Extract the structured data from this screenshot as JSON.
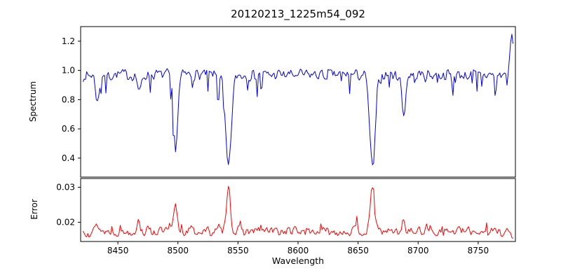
{
  "figure": {
    "title": "20120213_1225m54_092",
    "xlabel": "Wavelength",
    "ylabel_top": "Spectrum",
    "ylabel_bottom": "Error",
    "background": "#ffffff"
  },
  "chart_data": {
    "type": "line",
    "title": "20120213_1225m54_092",
    "xlabel": "Wavelength",
    "grid": false,
    "legend": null,
    "xlim": [
      8419,
      8781
    ],
    "xticks": [
      8450,
      8500,
      8550,
      8600,
      8650,
      8700,
      8750
    ],
    "xtick_labels": [
      "8450",
      "8500",
      "8550",
      "8600",
      "8650",
      "8700",
      "8750"
    ],
    "panels": [
      {
        "ylabel": "Spectrum",
        "ylim": [
          0.27,
          1.3
        ],
        "yticks": [
          0.4,
          0.6,
          0.8,
          1.0,
          1.2
        ],
        "ytick_labels": [
          "0.4",
          "0.6",
          "0.8",
          "1.0",
          "1.2"
        ],
        "series": {
          "name": "spectrum",
          "color": "#0000ee",
          "x_start": 8421,
          "x_end": 8779,
          "x_step": 1,
          "baseline": 0.97,
          "noise_amp": 0.1,
          "dip_prob": 0.1,
          "dip_max": 0.16,
          "spike_prob": 0,
          "spike_max": 0,
          "seed": 7,
          "absorption_lines": [
            {
              "center": 8433,
              "depth": 0.19,
              "width": 2.0
            },
            {
              "center": 8468,
              "depth": 0.13,
              "width": 2.0
            },
            {
              "center": 8498,
              "depth": 0.5,
              "width": 2.6
            },
            {
              "center": 8542,
              "depth": 0.64,
              "width": 3.4
            },
            {
              "center": 8662,
              "depth": 0.64,
              "width": 3.2
            },
            {
              "center": 8688,
              "depth": 0.27,
              "width": 2.2
            }
          ],
          "emission_spike": {
            "center": 8778,
            "amp": 0.27,
            "width": 1.8
          }
        }
      },
      {
        "ylabel": "Error",
        "ylim": [
          0.0145,
          0.0325
        ],
        "yticks": [
          0.02,
          0.03
        ],
        "ytick_labels": [
          "0.02",
          "0.03"
        ],
        "series": {
          "name": "error",
          "color": "#ff0000",
          "x_start": 8421,
          "x_end": 8779,
          "x_step": 1,
          "baseline": 0.0174,
          "noise_amp": 0.0035,
          "dip_prob": 0,
          "dip_max": 0,
          "spike_prob": 0.07,
          "spike_max": 0.003,
          "seed": 13,
          "peaks": [
            {
              "center": 8433,
              "amp": 0.002,
              "width": 2.0
            },
            {
              "center": 8467,
              "amp": 0.0028,
              "width": 2.0
            },
            {
              "center": 8498,
              "amp": 0.0072,
              "width": 2.2
            },
            {
              "center": 8542,
              "amp": 0.014,
              "width": 2.2
            },
            {
              "center": 8662,
              "amp": 0.0132,
              "width": 2.2
            },
            {
              "center": 8688,
              "amp": 0.0028,
              "width": 2.0
            }
          ],
          "end_dip": {
            "center": 8779,
            "amp": -0.0018,
            "width": 2.0
          }
        }
      }
    ]
  }
}
